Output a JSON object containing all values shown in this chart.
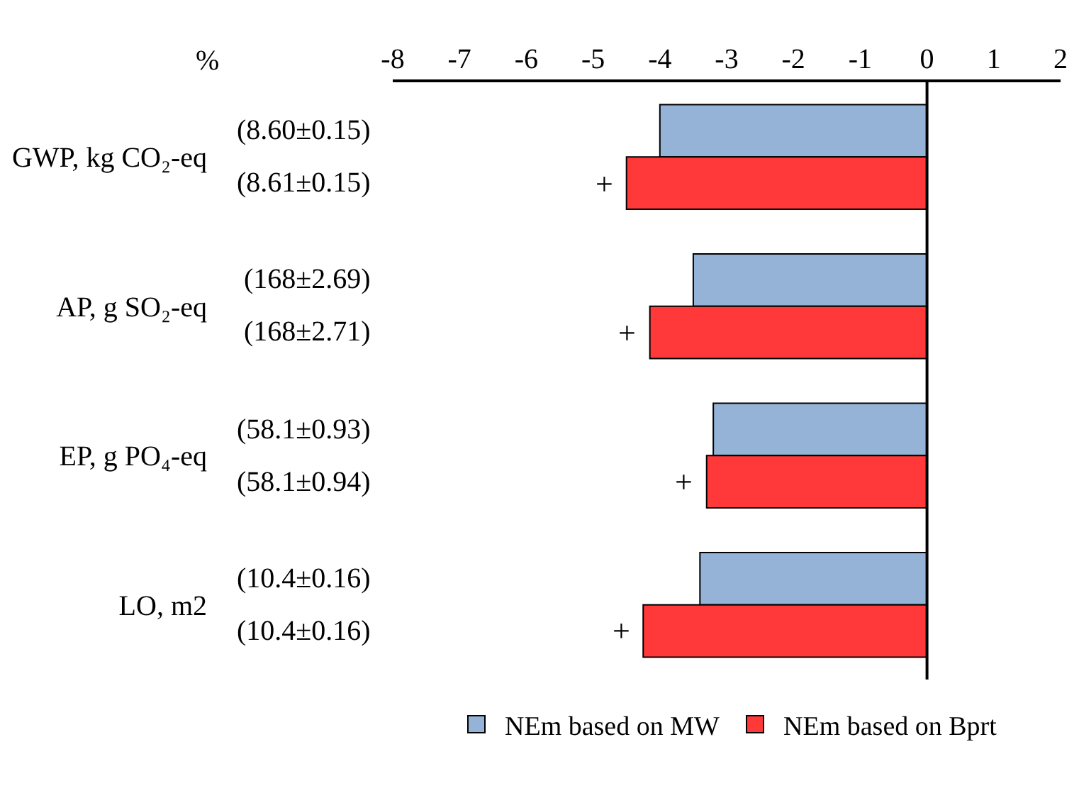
{
  "chart_data": {
    "type": "bar",
    "orientation": "horizontal",
    "xlabel": "%",
    "categories": [
      "GWP, kg CO₂-eq",
      "AP, g SO₂-eq",
      "EP, g PO₄-eq",
      "LO, m2"
    ],
    "series": [
      {
        "name": "NEm based on MW",
        "color": "#95b3d7",
        "values": [
          -4.0,
          -3.5,
          -3.2,
          -3.4
        ]
      },
      {
        "name": "NEm based on Bprt",
        "color": "#ff3939",
        "values": [
          -4.5,
          -4.15,
          -3.3,
          -4.25
        ]
      }
    ],
    "annotations": [
      "(8.60±0.15)",
      "(8.61±0.15)",
      "(168±2.69)",
      "(168±2.71)",
      "(58.1±0.93)",
      "(58.1±0.94)",
      "(10.4±0.16)",
      "(10.4±0.16)",
      {
        "text": "+",
        "x": -4.5,
        "y": "GWP, kg CO₂-eq"
      },
      {
        "text": "+",
        "x": -4.15,
        "y": "AP, g SO₂-eq"
      },
      {
        "text": "+",
        "x": -3.3,
        "y": "EP, g PO₄-eq"
      },
      {
        "text": "+",
        "x": -4.25,
        "y": "LO, m2"
      }
    ],
    "xlim": [
      -8,
      2
    ],
    "xticks": [
      -8,
      -7,
      -6,
      -5,
      -4,
      -3,
      -2,
      -1,
      0,
      1,
      2
    ],
    "ref_lines": [
      {
        "axis": "x",
        "value": 0,
        "color": "#000000"
      }
    ],
    "grid": false,
    "legend": "bottom"
  }
}
